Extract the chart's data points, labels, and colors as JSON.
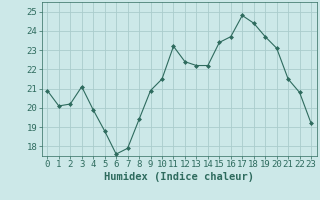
{
  "x": [
    0,
    1,
    2,
    3,
    4,
    5,
    6,
    7,
    8,
    9,
    10,
    11,
    12,
    13,
    14,
    15,
    16,
    17,
    18,
    19,
    20,
    21,
    22,
    23
  ],
  "y": [
    20.9,
    20.1,
    20.2,
    21.1,
    19.9,
    18.8,
    17.6,
    17.9,
    19.4,
    20.9,
    21.5,
    23.2,
    22.4,
    22.2,
    22.2,
    23.4,
    23.7,
    24.8,
    24.4,
    23.7,
    23.1,
    21.5,
    20.8,
    19.2
  ],
  "line_color": "#2e6b5e",
  "marker": "D",
  "marker_size": 2.0,
  "bg_color": "#cce8e8",
  "grid_color": "#aacccc",
  "xlabel": "Humidex (Indice chaleur)",
  "ylim": [
    17.5,
    25.5
  ],
  "yticks": [
    18,
    19,
    20,
    21,
    22,
    23,
    24,
    25
  ],
  "xticks": [
    0,
    1,
    2,
    3,
    4,
    5,
    6,
    7,
    8,
    9,
    10,
    11,
    12,
    13,
    14,
    15,
    16,
    17,
    18,
    19,
    20,
    21,
    22,
    23
  ],
  "tick_label_fontsize": 6.5,
  "xlabel_fontsize": 7.5
}
